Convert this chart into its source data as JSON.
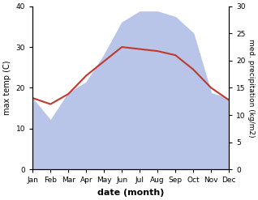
{
  "months": [
    "Jan",
    "Feb",
    "Mar",
    "Apr",
    "May",
    "Jun",
    "Jul",
    "Aug",
    "Sep",
    "Oct",
    "Nov",
    "Dec"
  ],
  "temp": [
    17.5,
    16.0,
    18.5,
    23.0,
    26.5,
    30.0,
    29.5,
    29.0,
    28.0,
    24.5,
    20.0,
    17.0
  ],
  "precip": [
    13.0,
    9.0,
    14.0,
    16.0,
    21.0,
    27.0,
    29.0,
    29.0,
    28.0,
    25.0,
    14.0,
    13.0
  ],
  "temp_color": "#c0392b",
  "precip_fill_color": "#b8c4e8",
  "ylabel_left": "max temp (C)",
  "ylabel_right": "med. precipitation (kg/m2)",
  "xlabel": "date (month)",
  "ylim_left": [
    0,
    40
  ],
  "ylim_right": [
    0,
    30
  ],
  "left_yticks": [
    0,
    10,
    20,
    30,
    40
  ],
  "right_yticks": [
    0,
    5,
    10,
    15,
    20,
    25,
    30
  ]
}
